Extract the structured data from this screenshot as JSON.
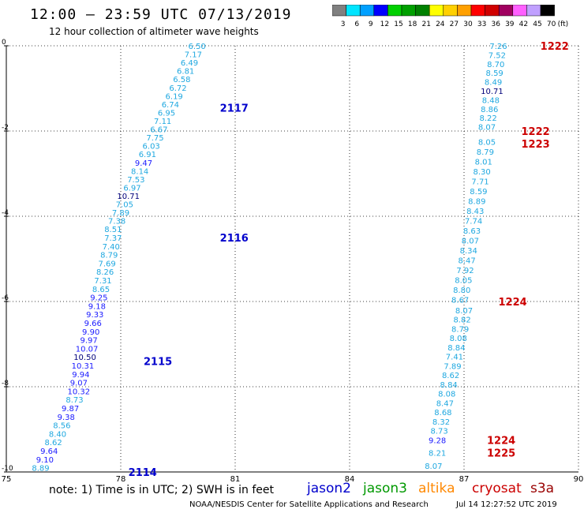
{
  "header": {
    "title": "12:00 – 23:59 UTC 07/13/2019",
    "subtitle": "12 hour collection of altimeter wave heights"
  },
  "colorbar": {
    "ticks": [
      "3",
      "6",
      "9",
      "12",
      "15",
      "18",
      "21",
      "24",
      "27",
      "30",
      "33",
      "36",
      "39",
      "42",
      "45",
      "70"
    ],
    "unit": "(ft)",
    "colors": [
      "#808080",
      "#00e5ff",
      "#00a0ff",
      "#0000ff",
      "#00d000",
      "#00a000",
      "#008000",
      "#ffff00",
      "#ffd000",
      "#ffa000",
      "#ff0000",
      "#d00000",
      "#a00060",
      "#ff60ff",
      "#c0a0ff",
      "#000000"
    ]
  },
  "axes": {
    "x_ticks": [
      "75",
      "78",
      "81",
      "84",
      "87",
      "90"
    ],
    "y_ticks": [
      "0",
      "-2",
      "-4",
      "-6",
      "-8",
      "-10"
    ]
  },
  "chart_data": {
    "type": "scatter",
    "xlim": [
      75,
      90
    ],
    "ylim": [
      -10,
      0
    ],
    "tracks": [
      {
        "label": "2117",
        "label_pos": [
          80.6,
          -1.45
        ],
        "satellite": "jason2",
        "values": [
          "6.50",
          "7.17",
          "6.49",
          "6.81",
          "6.58",
          "6.72",
          "6.19",
          "6.74",
          "6.95",
          "7.11",
          "6.67",
          "7.75",
          "6.03",
          "6.91",
          "9.47",
          "8.14",
          "7.53",
          "6.97",
          "10.71",
          "7.05",
          "7.89",
          "7.38",
          "8.51"
        ]
      },
      {
        "label": "2116",
        "label_pos": [
          80.6,
          -4.5
        ],
        "satellite": "jason2",
        "values": [
          "7.37",
          "7.40",
          "8.79",
          "7.69",
          "8.26",
          "7.31",
          "8.65",
          "9.25",
          "9.18",
          "9.33",
          "9.66",
          "9.90",
          "9.97",
          "10.07",
          "10.50",
          "10.31",
          "9.94",
          "9.07"
        ]
      },
      {
        "label": "2115",
        "label_pos": [
          78.6,
          -7.4
        ],
        "satellite": "jason2",
        "values": [
          "10.32",
          "8.73",
          "9.87",
          "9.38",
          "8.56",
          "8.40",
          "8.62",
          "9.64",
          "9.10",
          "8.89"
        ]
      },
      {
        "label": "2114",
        "label_pos": [
          78.2,
          -10.0
        ],
        "satellite": "jason2",
        "values": []
      },
      {
        "label": "1222",
        "label_pos": [
          89.0,
          0.0
        ],
        "satellite": "cryosat",
        "values": [
          "7.26",
          "7.52",
          "8.70",
          "8.59",
          "8.49",
          "10.71",
          "8.48",
          "8.86",
          "8.22",
          "8.07"
        ]
      },
      {
        "label": "1222",
        "label_pos": [
          88.5,
          -2.0
        ],
        "satellite": "cryosat",
        "values": []
      },
      {
        "label": "1223",
        "label_pos": [
          88.5,
          -2.3
        ],
        "satellite": "cryosat",
        "values": [
          "8.05",
          "8.79",
          "8.01",
          "8.30",
          "7.71",
          "8.59",
          "8.89",
          "8.43",
          "7.74",
          "8.63",
          "8.07",
          "8.34",
          "8.47",
          "7.92",
          "8.05",
          "8.80",
          "8.67"
        ]
      },
      {
        "label": "1224",
        "label_pos": [
          87.9,
          -6.0
        ],
        "satellite": "cryosat",
        "values": [
          "8.07",
          "8.82",
          "8.79",
          "8.08",
          "8.84",
          "7.41",
          "7.89",
          "8.62",
          "8.84",
          "8.08",
          "8.47",
          "8.68",
          "8.32",
          "8.73",
          "9.28"
        ]
      },
      {
        "label": "1224",
        "label_pos": [
          87.6,
          -9.25
        ],
        "satellite": "cryosat",
        "values": []
      },
      {
        "label": "1225",
        "label_pos": [
          87.6,
          -9.55
        ],
        "satellite": "cryosat",
        "values": [
          "8.21",
          "8.07"
        ]
      }
    ]
  },
  "legend": {
    "satellites": [
      {
        "name": "jason2",
        "color": "#0000cc"
      },
      {
        "name": "jason3",
        "color": "#009900"
      },
      {
        "name": "altika",
        "color": "#ff8800"
      },
      {
        "name": "cryosat",
        "color": "#cc0000"
      },
      {
        "name": "s3a",
        "color": "#990000"
      }
    ]
  },
  "footer": {
    "note": "note:  1) Time is in UTC;  2) SWH is in feet",
    "credit": "NOAA/NESDIS Center for Satellite Applications and Research",
    "timestamp": "Jul 14 12:27:52 UTC 2019"
  }
}
